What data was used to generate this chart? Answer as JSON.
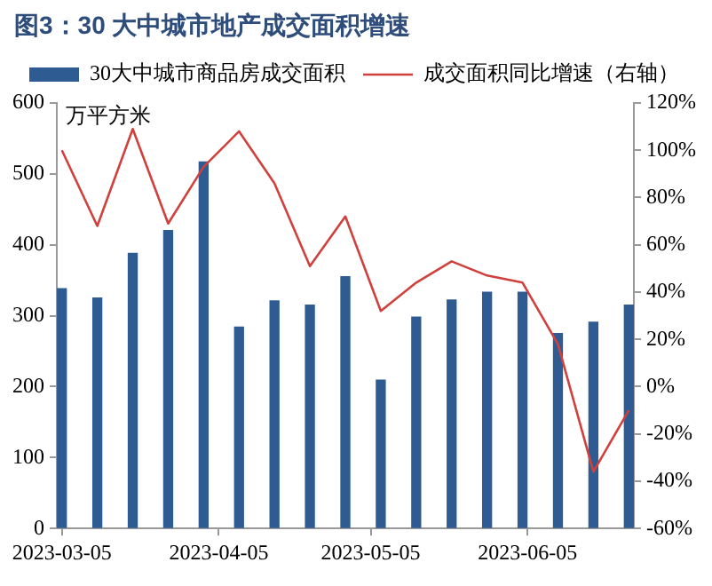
{
  "chart_data": {
    "type": "bar",
    "title": "图3：30 大中城市地产成交面积增速",
    "ylabel": "万平方米",
    "x": [
      "2023-03-05",
      "2023-03-12",
      "2023-03-19",
      "2023-03-26",
      "2023-04-02",
      "2023-04-09",
      "2023-04-16",
      "2023-04-23",
      "2023-04-30",
      "2023-05-07",
      "2023-05-14",
      "2023-05-21",
      "2023-05-28",
      "2023-06-04",
      "2023-06-11",
      "2023-06-18",
      "2023-06-25"
    ],
    "xlim": [
      "2023-03-04",
      "2023-06-26"
    ],
    "xticks": [
      "2023-03-05",
      "2023-04-05",
      "2023-05-05",
      "2023-06-05"
    ],
    "series": [
      {
        "name": "30大中城市商品房成交面积",
        "color": "#2f5b93",
        "values": [
          338,
          325,
          388,
          420,
          517,
          284,
          321,
          315,
          355,
          209,
          298,
          322,
          333,
          333,
          275,
          291,
          315
        ]
      },
      {
        "name": "成交面积同比增速（右轴）",
        "type": "line",
        "axis": "y2",
        "color": "#d0403c",
        "values": [
          100,
          68,
          109,
          69,
          93,
          108,
          86,
          51,
          72,
          32,
          44,
          53,
          47,
          44,
          18,
          -36,
          -10
        ]
      }
    ],
    "ylim": [
      0,
      600
    ],
    "yticks": [
      0,
      100,
      200,
      300,
      400,
      500,
      600
    ],
    "y2lim": [
      -60,
      120
    ],
    "y2ticks": [
      {
        "value": -60,
        "label": "-60%"
      },
      {
        "value": -40,
        "label": "-40%"
      },
      {
        "value": -20,
        "label": "-20%"
      },
      {
        "value": 0,
        "label": "0%"
      },
      {
        "value": 20,
        "label": "20%"
      },
      {
        "value": 40,
        "label": "40%"
      },
      {
        "value": 60,
        "label": "60%"
      },
      {
        "value": 80,
        "label": "80%"
      },
      {
        "value": 100,
        "label": "100%"
      },
      {
        "value": 120,
        "label": "120%"
      }
    ],
    "legend": "top",
    "grid": false,
    "marker": "none"
  }
}
